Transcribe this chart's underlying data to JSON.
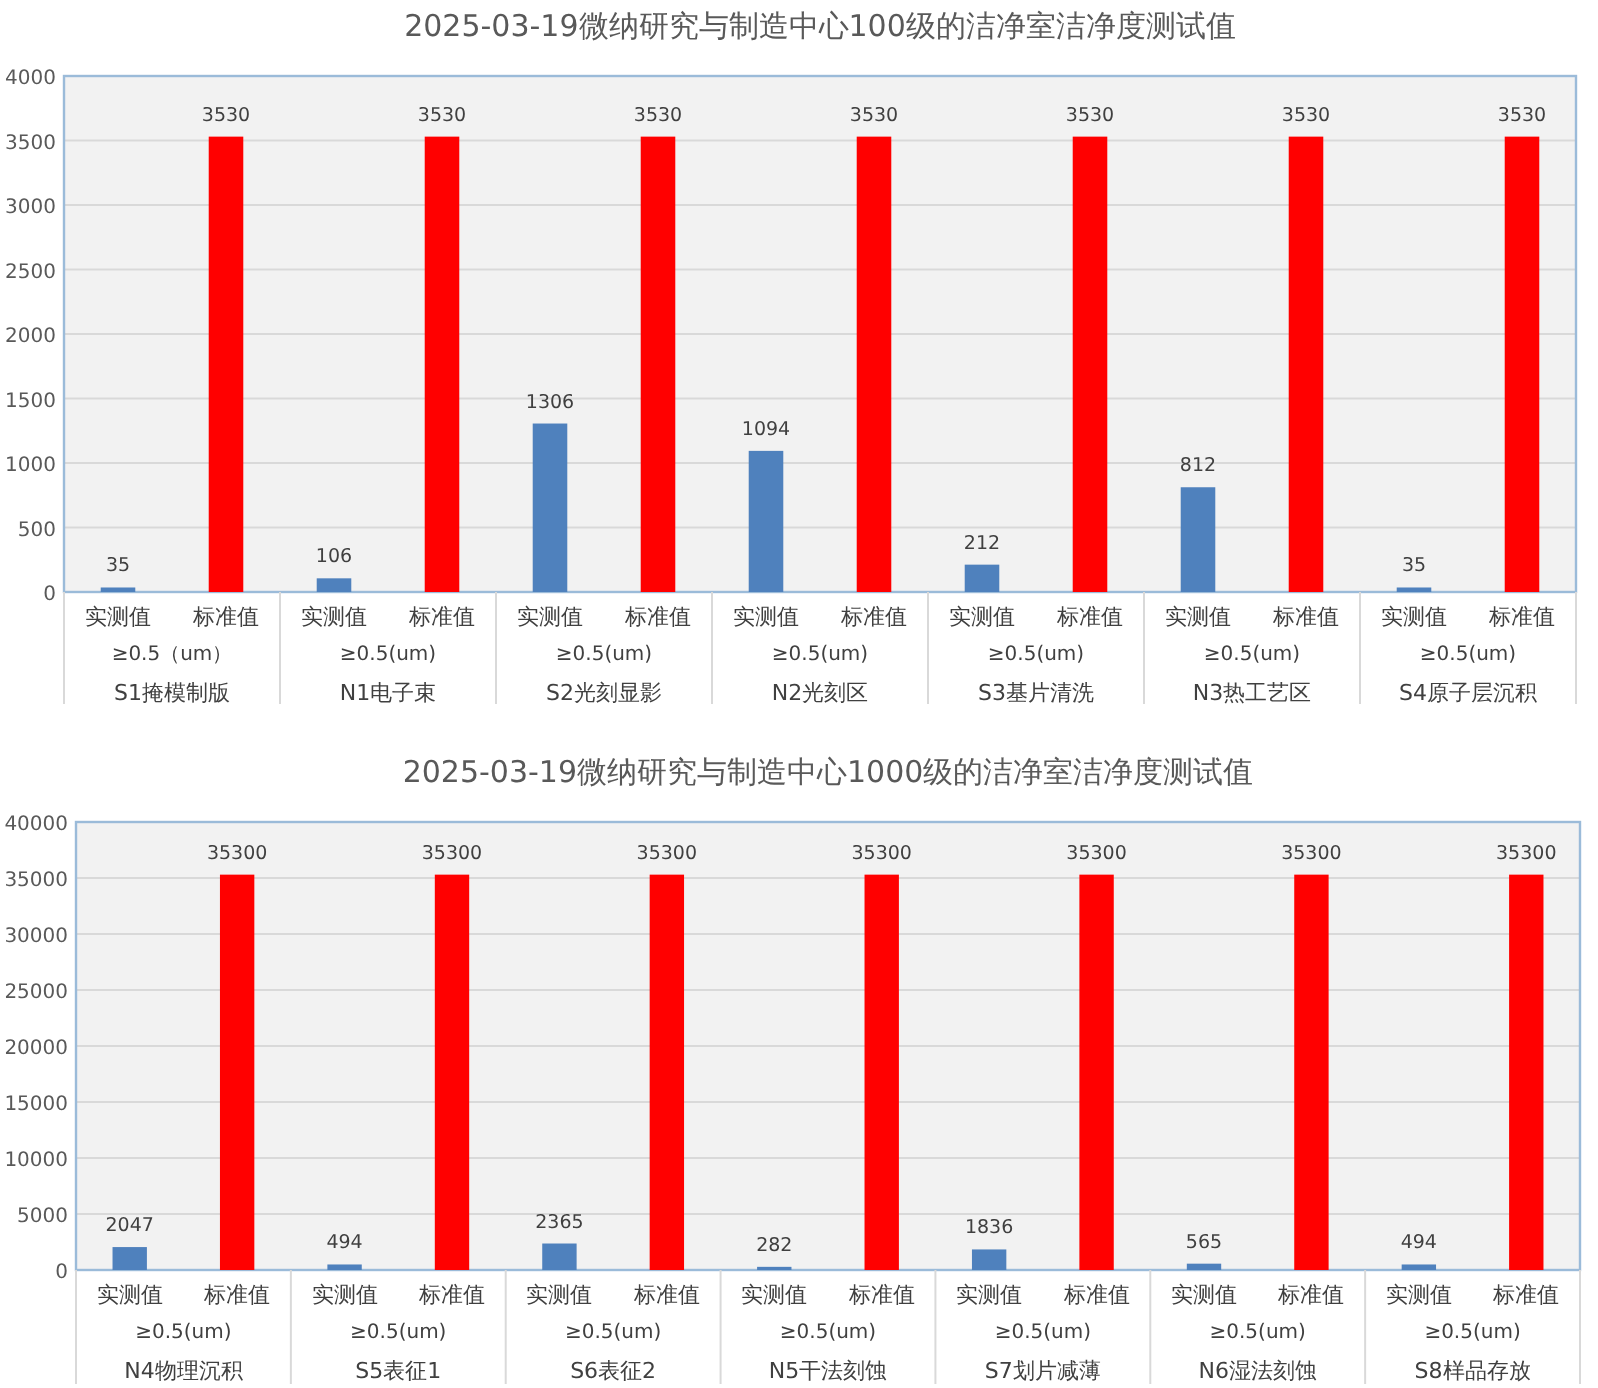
{
  "chart_data": [
    {
      "type": "bar",
      "title": "2025-03-19微纳研究与制造中心100级的洁净室洁净度测试值",
      "categories": [
        "实测值",
        "标准值",
        "实测值",
        "标准值",
        "实测值",
        "标准值",
        "实测值",
        "标准值",
        "实测值",
        "标准值",
        "实测值",
        "标准值",
        "实测值",
        "标准值"
      ],
      "values": [
        35,
        3530,
        106,
        3530,
        1306,
        3530,
        1094,
        3530,
        212,
        3530,
        812,
        3530,
        35,
        3530
      ],
      "colors": [
        "#4f81bd",
        "#ff0000",
        "#4f81bd",
        "#ff0000",
        "#4f81bd",
        "#ff0000",
        "#4f81bd",
        "#ff0000",
        "#4f81bd",
        "#ff0000",
        "#4f81bd",
        "#ff0000",
        "#4f81bd",
        "#ff0000"
      ],
      "annotations": [
        "≥0.5（um）",
        "S1掩模制版",
        "≥0.5(um)",
        "N1电子束",
        "≥0.5(um)",
        "S2光刻显影",
        "≥0.5(um)",
        "N2光刻区",
        "≥0.5(um)",
        "S3基片清洗",
        "≥0.5(um)",
        "N3热工艺区",
        "≥0.5(um)",
        "S4原子层沉积"
      ],
      "ylim": [
        0,
        4000
      ],
      "yticks": [
        0,
        500,
        1000,
        1500,
        2000,
        2500,
        3000,
        3500,
        4000
      ],
      "grid": "y",
      "data_labels": true
    },
    {
      "type": "bar",
      "title": "2025-03-19微纳研究与制造中心1000级的洁净室洁净度测试值",
      "categories": [
        "实测值",
        "标准值",
        "实测值",
        "标准值",
        "实测值",
        "标准值",
        "实测值",
        "标准值",
        "实测值",
        "标准值",
        "实测值",
        "标准值",
        "实测值",
        "标准值"
      ],
      "values": [
        2047,
        35300,
        494,
        35300,
        2365,
        35300,
        282,
        35300,
        1836,
        35300,
        565,
        35300,
        494,
        35300
      ],
      "colors": [
        "#4f81bd",
        "#ff0000",
        "#4f81bd",
        "#ff0000",
        "#4f81bd",
        "#ff0000",
        "#4f81bd",
        "#ff0000",
        "#4f81bd",
        "#ff0000",
        "#4f81bd",
        "#ff0000",
        "#4f81bd",
        "#ff0000"
      ],
      "annotations": [
        "≥0.5(um)",
        "N4物理沉积",
        "≥0.5(um)",
        "S5表征1",
        "≥0.5(um)",
        "S6表征2",
        "≥0.5(um)",
        "N5干法刻蚀",
        "≥0.5(um)",
        "S7划片减薄",
        "≥0.5(um)",
        "N6湿法刻蚀",
        "≥0.5(um)",
        "S8样品存放"
      ],
      "ylim": [
        0,
        40000
      ],
      "yticks": [
        0,
        5000,
        10000,
        15000,
        20000,
        25000,
        30000,
        35000,
        40000
      ],
      "grid": "y",
      "data_labels": true
    }
  ]
}
